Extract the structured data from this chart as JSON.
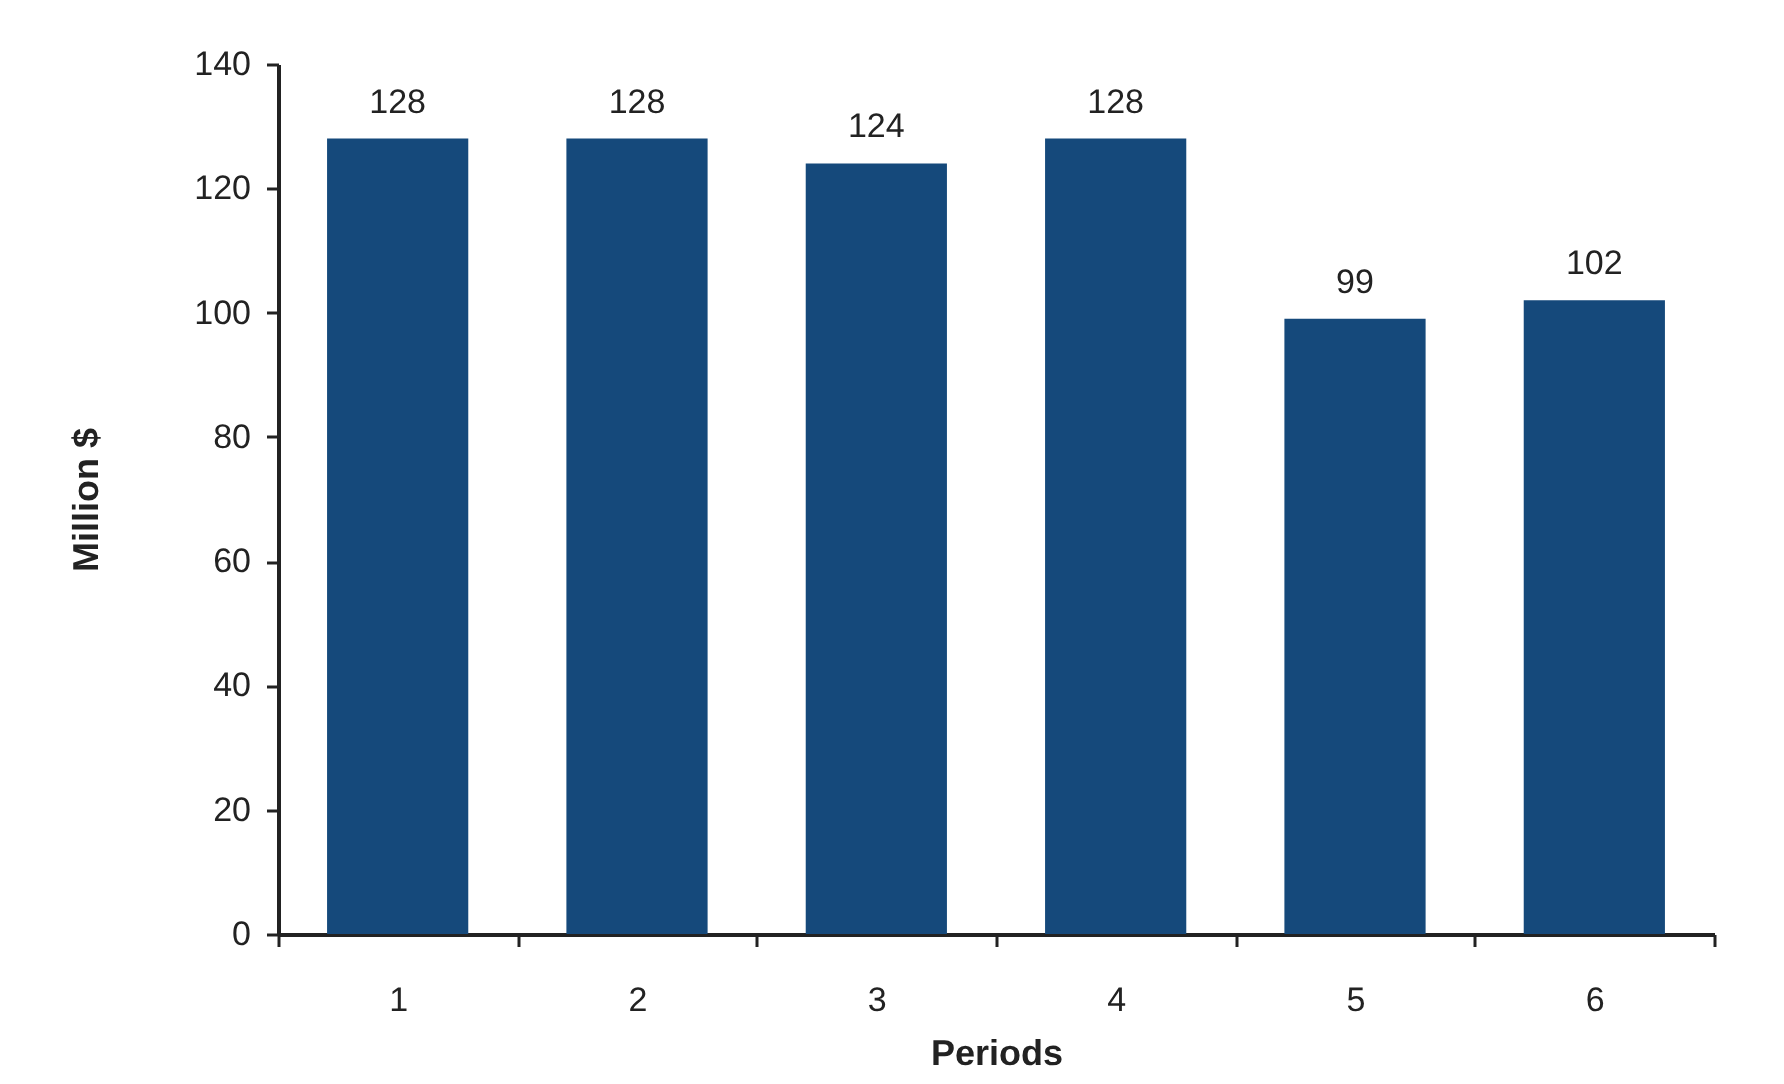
{
  "chart_data": {
    "type": "bar",
    "xlabel": "Periods",
    "ylabel": "Million $",
    "categories": [
      "1",
      "2",
      "3",
      "4",
      "5",
      "6"
    ],
    "values": [
      128,
      128,
      124,
      128,
      99,
      102
    ],
    "color": "#15497b",
    "ylim": [
      0,
      140
    ],
    "yticks": [
      0,
      20,
      40,
      60,
      80,
      100,
      120,
      140
    ],
    "data_labels": true,
    "grid": false
  }
}
